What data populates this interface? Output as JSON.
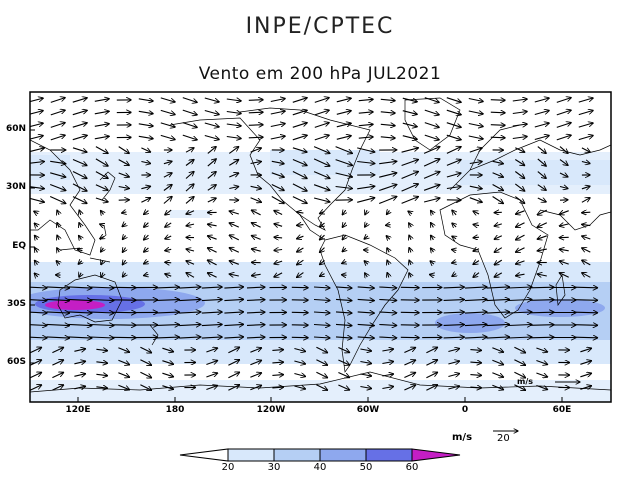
{
  "header": {
    "organization": "INPE/CPTEC",
    "title": "Vento em 200 hPa JUL2021"
  },
  "map": {
    "lat_labels": [
      "60N",
      "30N",
      "EQ",
      "30S",
      "60S"
    ],
    "lon_labels": [
      "120E",
      "180",
      "120W",
      "60W",
      "0",
      "60E"
    ],
    "inner_units_label": "m/s"
  },
  "legend": {
    "units": "m/s",
    "reference_vector": "20",
    "levels": [
      "20",
      "30",
      "40",
      "50",
      "60"
    ],
    "colors": [
      "#ffffff",
      "#d8e8fb",
      "#b5cff4",
      "#8ea8ee",
      "#6670e6",
      "#c41ec4"
    ]
  }
}
